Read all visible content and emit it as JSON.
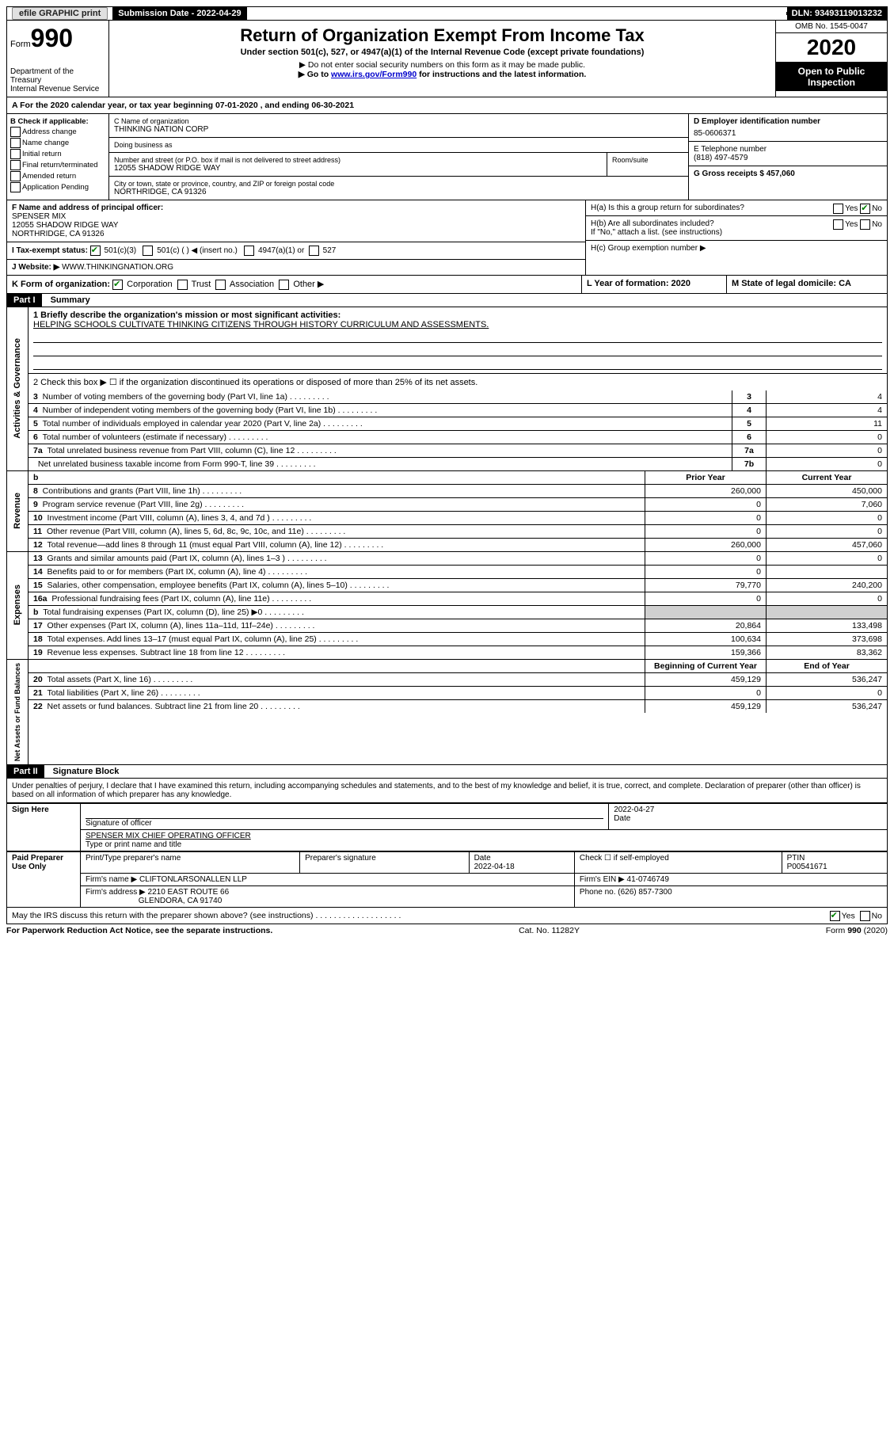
{
  "topbar": {
    "efile_label": "efile GRAPHIC print",
    "submission_label": "Submission Date - 2022-04-29",
    "dln_label": "DLN: 93493119013232"
  },
  "title": {
    "form_word": "Form",
    "form_num": "990",
    "dept": "Department of the Treasury",
    "irs": "Internal Revenue Service",
    "main": "Return of Organization Exempt From Income Tax",
    "sub": "Under section 501(c), 527, or 4947(a)(1) of the Internal Revenue Code (except private foundations)",
    "note1": "▶ Do not enter social security numbers on this form as it may be made public.",
    "note2_a": "▶ Go to ",
    "note2_link": "www.irs.gov/Form990",
    "note2_b": " for instructions and the latest information.",
    "omb": "OMB No. 1545-0047",
    "year": "2020",
    "inspection": "Open to Public Inspection"
  },
  "a_line": "For the 2020 calendar year, or tax year beginning 07-01-2020    , and ending 06-30-2021",
  "b": {
    "label": "B Check if applicable:",
    "addr": "Address change",
    "name": "Name change",
    "initial": "Initial return",
    "final": "Final return/terminated",
    "amended": "Amended return",
    "app": "Application Pending"
  },
  "c": {
    "name_label": "C Name of organization",
    "name": "THINKING NATION CORP",
    "dba_label": "Doing business as",
    "street_label": "Number and street (or P.O. box if mail is not delivered to street address)",
    "room_label": "Room/suite",
    "street": "12055 SHADOW RIDGE WAY",
    "city_label": "City or town, state or province, country, and ZIP or foreign postal code",
    "city": "NORTHRIDGE, CA  91326"
  },
  "d": {
    "label": "D Employer identification number",
    "value": "85-0606371"
  },
  "e": {
    "label": "E Telephone number",
    "value": "(818) 497-4579"
  },
  "g": {
    "label": "G Gross receipts $ 457,060"
  },
  "f": {
    "label": "F  Name and address of principal officer:",
    "name": "SPENSER MIX",
    "street": "12055 SHADOW RIDGE WAY",
    "city": "NORTHRIDGE, CA  91326"
  },
  "h": {
    "a": "H(a)  Is this a group return for subordinates?",
    "b": "H(b)  Are all subordinates included?",
    "b_note": "If \"No,\" attach a list. (see instructions)",
    "c": "H(c)  Group exemption number ▶",
    "yes": "Yes",
    "no": "No"
  },
  "i": {
    "label": "I   Tax-exempt status:",
    "o1": "501(c)(3)",
    "o2": "501(c) (  ) ◀ (insert no.)",
    "o3": "4947(a)(1) or",
    "o4": "527"
  },
  "j": {
    "label": "J   Website: ▶",
    "value": "  WWW.THINKINGNATION.ORG"
  },
  "k": {
    "label": "K Form of organization:",
    "corp": "Corporation",
    "trust": "Trust",
    "assoc": "Association",
    "other": "Other ▶"
  },
  "l": {
    "label": "L Year of formation: 2020"
  },
  "m": {
    "label": "M State of legal domicile: CA"
  },
  "part1": {
    "header": "Part I",
    "title": "Summary",
    "line1_label": "1  Briefly describe the organization's mission or most significant activities:",
    "line1_val": "HELPING SCHOOLS CULTIVATE THINKING CITIZENS THROUGH HISTORY CURRICULUM AND ASSESSMENTS.",
    "line2": "2   Check this box ▶ ☐  if the organization discontinued its operations or disposed of more than 25% of its net assets.",
    "rows_ag": [
      {
        "n": "3",
        "text": "Number of voting members of the governing body (Part VI, line 1a)",
        "box": "3",
        "val": "4"
      },
      {
        "n": "4",
        "text": "Number of independent voting members of the governing body (Part VI, line 1b)",
        "box": "4",
        "val": "4"
      },
      {
        "n": "5",
        "text": "Total number of individuals employed in calendar year 2020 (Part V, line 2a)",
        "box": "5",
        "val": "11"
      },
      {
        "n": "6",
        "text": "Total number of volunteers (estimate if necessary)",
        "box": "6",
        "val": "0"
      },
      {
        "n": "7a",
        "text": "Total unrelated business revenue from Part VIII, column (C), line 12",
        "box": "7a",
        "val": "0"
      },
      {
        "n": "",
        "text": "Net unrelated business taxable income from Form 990-T, line 39",
        "box": "7b",
        "val": "0"
      }
    ],
    "b_label": "b",
    "prior_year": "Prior Year",
    "current_year": "Current Year",
    "rows_rev": [
      {
        "n": "8",
        "text": "Contributions and grants (Part VIII, line 1h)",
        "py": "260,000",
        "cy": "450,000"
      },
      {
        "n": "9",
        "text": "Program service revenue (Part VIII, line 2g)",
        "py": "0",
        "cy": "7,060"
      },
      {
        "n": "10",
        "text": "Investment income (Part VIII, column (A), lines 3, 4, and 7d )",
        "py": "0",
        "cy": "0"
      },
      {
        "n": "11",
        "text": "Other revenue (Part VIII, column (A), lines 5, 6d, 8c, 9c, 10c, and 11e)",
        "py": "0",
        "cy": "0"
      },
      {
        "n": "12",
        "text": "Total revenue—add lines 8 through 11 (must equal Part VIII, column (A), line 12)",
        "py": "260,000",
        "cy": "457,060"
      }
    ],
    "rows_exp": [
      {
        "n": "13",
        "text": "Grants and similar amounts paid (Part IX, column (A), lines 1–3 )",
        "py": "0",
        "cy": "0"
      },
      {
        "n": "14",
        "text": "Benefits paid to or for members (Part IX, column (A), line 4)",
        "py": "0",
        "cy": ""
      },
      {
        "n": "15",
        "text": "Salaries, other compensation, employee benefits (Part IX, column (A), lines 5–10)",
        "py": "79,770",
        "cy": "240,200"
      },
      {
        "n": "16a",
        "text": "Professional fundraising fees (Part IX, column (A), line 11e)",
        "py": "0",
        "cy": "0"
      },
      {
        "n": "b",
        "text": "Total fundraising expenses (Part IX, column (D), line 25) ▶0",
        "py": "",
        "cy": "",
        "shaded": true
      },
      {
        "n": "17",
        "text": "Other expenses (Part IX, column (A), lines 11a–11d, 11f–24e)",
        "py": "20,864",
        "cy": "133,498"
      },
      {
        "n": "18",
        "text": "Total expenses. Add lines 13–17 (must equal Part IX, column (A), line 25)",
        "py": "100,634",
        "cy": "373,698"
      },
      {
        "n": "19",
        "text": "Revenue less expenses. Subtract line 18 from line 12",
        "py": "159,366",
        "cy": "83,362"
      }
    ],
    "bcy": "Beginning of Current Year",
    "eoy": "End of Year",
    "rows_na": [
      {
        "n": "20",
        "text": "Total assets (Part X, line 16)",
        "py": "459,129",
        "cy": "536,247"
      },
      {
        "n": "21",
        "text": "Total liabilities (Part X, line 26)",
        "py": "0",
        "cy": "0"
      },
      {
        "n": "22",
        "text": "Net assets or fund balances. Subtract line 21 from line 20",
        "py": "459,129",
        "cy": "536,247"
      }
    ],
    "side_ag": "Activities & Governance",
    "side_rev": "Revenue",
    "side_exp": "Expenses",
    "side_na": "Net Assets or Fund Balances"
  },
  "part2": {
    "header": "Part II",
    "title": "Signature Block",
    "penalty": "Under penalties of perjury, I declare that I have examined this return, including accompanying schedules and statements, and to the best of my knowledge and belief, it is true, correct, and complete. Declaration of preparer (other than officer) is based on all information of which preparer has any knowledge.",
    "sign_here": "Sign Here",
    "sig_officer": "Signature of officer",
    "sig_date": "2022-04-27",
    "date_label": "Date",
    "officer_name": "SPENSER MIX CHIEF OPERATING OFFICER",
    "type_label": "Type or print name and title",
    "paid": "Paid Preparer Use Only",
    "print_name": "Print/Type preparer's name",
    "prep_sig": "Preparer's signature",
    "prep_date_label": "Date",
    "prep_date": "2022-04-18",
    "check_self": "Check ☐ if self-employed",
    "ptin_label": "PTIN",
    "ptin": "P00541671",
    "firm_name_label": "Firm's name    ▶",
    "firm_name": "CLIFTONLARSONALLEN LLP",
    "firm_ein_label": "Firm's EIN ▶",
    "firm_ein": "41-0746749",
    "firm_addr_label": "Firm's address ▶",
    "firm_addr1": "2210 EAST ROUTE 66",
    "firm_addr2": "GLENDORA, CA  91740",
    "phone_label": "Phone no. (626) 857-7300",
    "discuss": "May the IRS discuss this return with the preparer shown above? (see instructions)"
  },
  "footer": {
    "left": "For Paperwork Reduction Act Notice, see the separate instructions.",
    "mid": "Cat. No. 11282Y",
    "right": "Form 990 (2020)"
  }
}
